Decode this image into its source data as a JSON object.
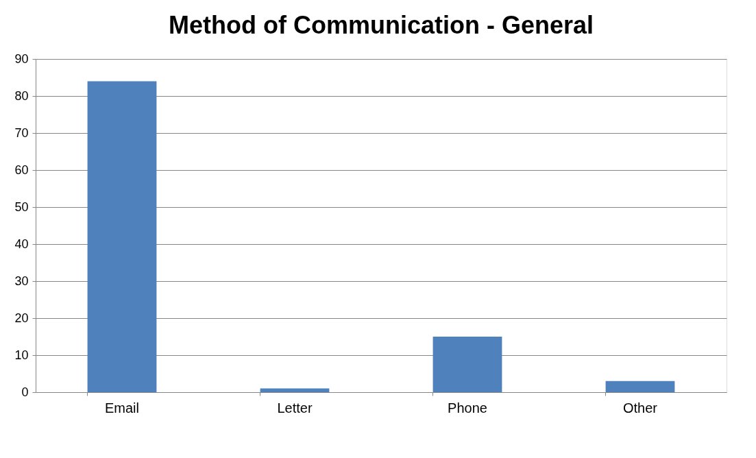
{
  "chart_data": {
    "type": "bar",
    "title": "Method of Communication - General",
    "categories": [
      "Email",
      "Letter",
      "Phone",
      "Other"
    ],
    "values": [
      84,
      1,
      15,
      3
    ],
    "color": "#4f81bd",
    "ylim": [
      0,
      90
    ],
    "yticks": [
      0,
      10,
      20,
      30,
      40,
      50,
      60,
      70,
      80,
      90
    ],
    "grid": "y"
  }
}
